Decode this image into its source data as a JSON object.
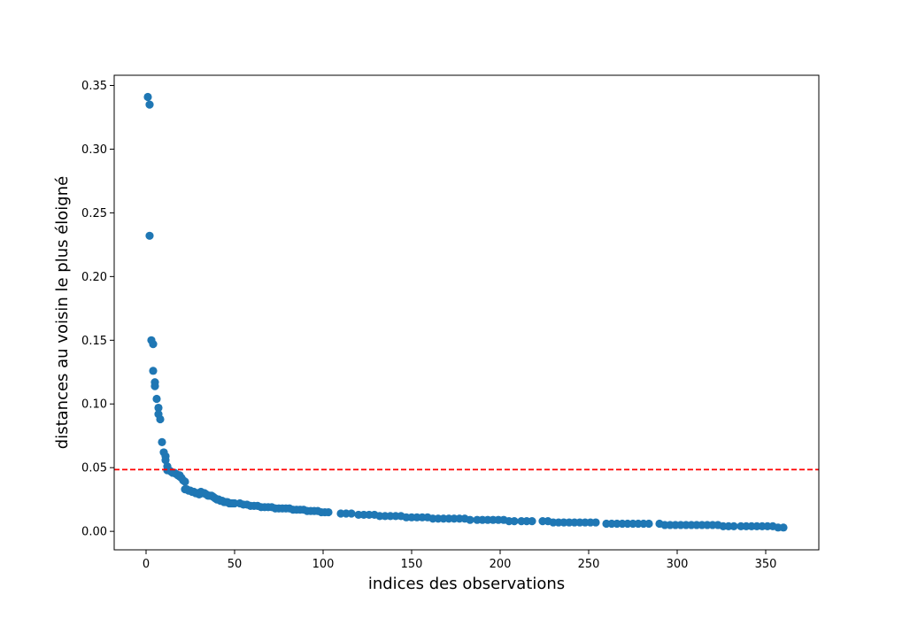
{
  "chart_data": {
    "type": "scatter",
    "title": "",
    "xlabel": "indices des observations",
    "ylabel": "distances au voisin le plus éloigné",
    "xlim": [
      -18,
      380
    ],
    "ylim": [
      -0.0145,
      0.358
    ],
    "x_ticks": [
      0,
      50,
      100,
      150,
      200,
      250,
      300,
      350
    ],
    "x_tick_labels": [
      "0",
      "50",
      "100",
      "150",
      "200",
      "250",
      "300",
      "350"
    ],
    "y_ticks": [
      0.0,
      0.05,
      0.1,
      0.15,
      0.2,
      0.25,
      0.3,
      0.35
    ],
    "y_tick_labels": [
      "0.00",
      "0.05",
      "0.10",
      "0.15",
      "0.20",
      "0.25",
      "0.30",
      "0.35"
    ],
    "grid": false,
    "marker_color": "#1f77b4",
    "threshold": {
      "y": 0.0485,
      "color": "#ff0000",
      "style": "dashed"
    },
    "series": [
      {
        "x": [
          1,
          2,
          2,
          3,
          4,
          4,
          5,
          5,
          6,
          7,
          7,
          8,
          9,
          10,
          11,
          11,
          12,
          12,
          13,
          14,
          15,
          16,
          17,
          18,
          19,
          19,
          20,
          21,
          22,
          22,
          23,
          24,
          25,
          26,
          27,
          28,
          29,
          30,
          31,
          32,
          33,
          34,
          35,
          36,
          37,
          38,
          39,
          40,
          41,
          42,
          43,
          44,
          45,
          46,
          47,
          48,
          49,
          50,
          53,
          55,
          57,
          59,
          61,
          63,
          65,
          67,
          69,
          71,
          73,
          75,
          77,
          79,
          81,
          83,
          85,
          87,
          89,
          91,
          93,
          95,
          97,
          99,
          101,
          103,
          110,
          113,
          116,
          120,
          123,
          126,
          129,
          132,
          135,
          138,
          141,
          144,
          147,
          150,
          153,
          156,
          159,
          162,
          165,
          168,
          171,
          174,
          177,
          180,
          183,
          187,
          190,
          193,
          196,
          199,
          202,
          205,
          208,
          212,
          215,
          218,
          224,
          227,
          230,
          233,
          236,
          239,
          242,
          245,
          248,
          251,
          254,
          260,
          263,
          266,
          269,
          272,
          275,
          278,
          281,
          284,
          290,
          293,
          296,
          299,
          302,
          305,
          308,
          311,
          314,
          317,
          320,
          323,
          326,
          329,
          332,
          336,
          339,
          342,
          345,
          348,
          351,
          354,
          357,
          360
        ],
        "y": [
          0.341,
          0.335,
          0.232,
          0.15,
          0.147,
          0.126,
          0.117,
          0.114,
          0.104,
          0.097,
          0.092,
          0.088,
          0.07,
          0.062,
          0.059,
          0.056,
          0.051,
          0.048,
          0.048,
          0.047,
          0.046,
          0.046,
          0.045,
          0.044,
          0.044,
          0.043,
          0.042,
          0.04,
          0.039,
          0.033,
          0.033,
          0.032,
          0.032,
          0.031,
          0.031,
          0.03,
          0.03,
          0.029,
          0.031,
          0.03,
          0.03,
          0.029,
          0.028,
          0.028,
          0.028,
          0.027,
          0.026,
          0.025,
          0.025,
          0.024,
          0.024,
          0.023,
          0.023,
          0.023,
          0.022,
          0.022,
          0.022,
          0.022,
          0.022,
          0.021,
          0.021,
          0.02,
          0.02,
          0.02,
          0.019,
          0.019,
          0.019,
          0.019,
          0.018,
          0.018,
          0.018,
          0.018,
          0.018,
          0.017,
          0.017,
          0.017,
          0.017,
          0.016,
          0.016,
          0.016,
          0.016,
          0.015,
          0.015,
          0.015,
          0.014,
          0.014,
          0.014,
          0.013,
          0.013,
          0.013,
          0.013,
          0.012,
          0.012,
          0.012,
          0.012,
          0.012,
          0.011,
          0.011,
          0.011,
          0.011,
          0.011,
          0.01,
          0.01,
          0.01,
          0.01,
          0.01,
          0.01,
          0.01,
          0.009,
          0.009,
          0.009,
          0.009,
          0.009,
          0.009,
          0.009,
          0.008,
          0.008,
          0.008,
          0.008,
          0.008,
          0.008,
          0.008,
          0.007,
          0.007,
          0.007,
          0.007,
          0.007,
          0.007,
          0.007,
          0.007,
          0.007,
          0.006,
          0.006,
          0.006,
          0.006,
          0.006,
          0.006,
          0.006,
          0.006,
          0.006,
          0.006,
          0.005,
          0.005,
          0.005,
          0.005,
          0.005,
          0.005,
          0.005,
          0.005,
          0.005,
          0.005,
          0.005,
          0.004,
          0.004,
          0.004,
          0.004,
          0.004,
          0.004,
          0.004,
          0.004,
          0.004,
          0.004,
          0.003,
          0.003
        ]
      }
    ]
  }
}
